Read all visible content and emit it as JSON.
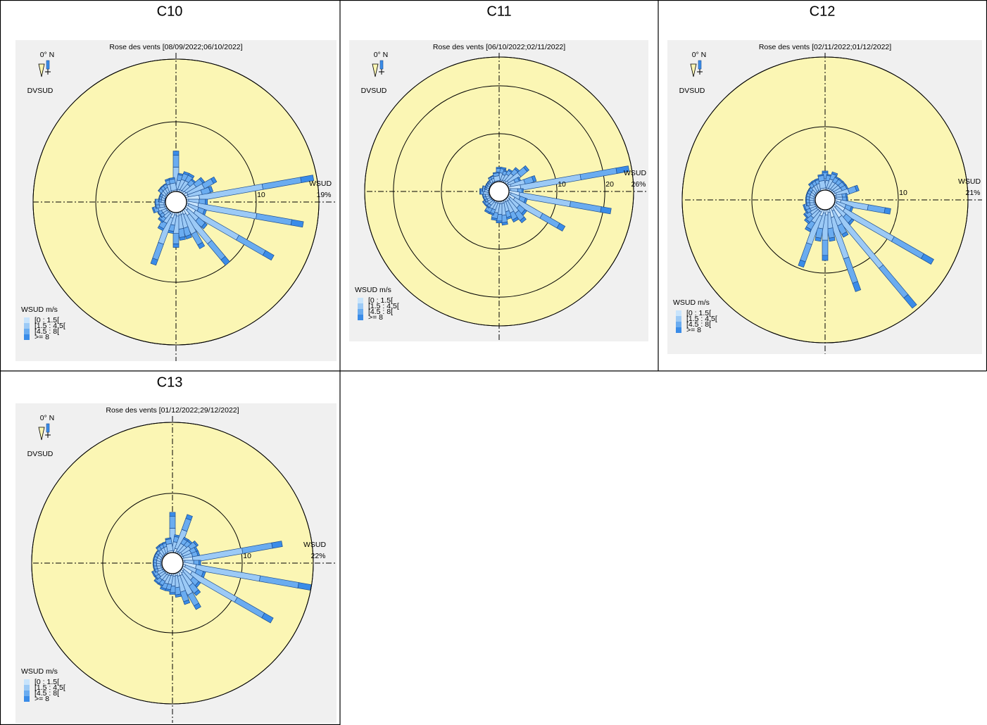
{
  "chart_data": [
    {
      "type": "windrose",
      "label": "C10",
      "title": "Rose des vents [08/09/2022;06/10/2022]",
      "north_label": "0° N",
      "direction_label": "DVSUD",
      "speed_label": "WSUD",
      "legend_title": "WSUD m/s",
      "grid": true,
      "x": [
        0,
        10,
        20,
        30,
        40,
        50,
        60,
        70,
        80,
        90,
        100,
        110,
        120,
        130,
        140,
        150,
        160,
        170,
        180,
        190,
        200,
        210,
        220,
        230,
        240,
        250,
        260,
        270,
        280,
        290,
        300,
        310,
        320,
        330,
        340,
        350
      ],
      "rlim": [
        0,
        19
      ],
      "rticks": [
        10,
        {
          "value": 19,
          "label": "19%"
        }
      ],
      "series": [
        {
          "name": "[0 : 1.5[",
          "color": "#c8e4fc",
          "values": [
            0.6,
            0.3,
            0.3,
            0.3,
            0.3,
            0.4,
            0.5,
            0.4,
            1.9,
            0.3,
            1.7,
            0.3,
            1.5,
            0.4,
            1,
            0.6,
            0.4,
            0.4,
            0.5,
            0.3,
            0.8,
            0.3,
            0.2,
            0.2,
            0.2,
            0.2,
            0.2,
            0.2,
            0.1,
            0.1,
            0.1,
            0.2,
            0.2,
            0.2,
            0.2,
            0.2
          ]
        },
        {
          "name": "[1.5 : 4.5[",
          "color": "#9ccaf6",
          "values": [
            2.9,
            1.3,
            1.5,
            1.5,
            1.2,
            1.7,
            2.5,
            2,
            9.2,
            1.5,
            8.5,
            1.5,
            7.2,
            2,
            5,
            3,
            2,
            2,
            2.5,
            1.5,
            4,
            1.5,
            1,
            0.7,
            0.7,
            1,
            0.7,
            0.7,
            0.5,
            0.5,
            0.5,
            0.7,
            0.7,
            0.7,
            1,
            1
          ]
        },
        {
          "name": "[4.5 : 8[",
          "color": "#6aacf0",
          "values": [
            1.7,
            0.8,
            0.9,
            0.9,
            0.8,
            1.1,
            1.5,
            1.2,
            5.6,
            0.9,
            5.1,
            0.9,
            4.4,
            1.2,
            3,
            1.8,
            1.2,
            1.2,
            1.5,
            0.9,
            2.4,
            0.9,
            0.6,
            0.5,
            0.5,
            0.6,
            0.5,
            0.5,
            0.3,
            0.3,
            0.3,
            0.5,
            0.5,
            0.5,
            0.6,
            0.6
          ]
        },
        {
          "name": ">= 8",
          "color": "#3a8ce8",
          "values": [
            0.6,
            0.2,
            0.3,
            0.3,
            0.2,
            0.3,
            0.5,
            0.4,
            1.8,
            0.3,
            1.7,
            0.3,
            1.4,
            0.4,
            1,
            0.6,
            0.4,
            0.4,
            0.5,
            0.3,
            0.8,
            0.3,
            0.2,
            0.1,
            0.1,
            0.2,
            0.1,
            0.1,
            0.1,
            0.1,
            0.1,
            0.1,
            0.1,
            0.1,
            0.2,
            0.2
          ]
        }
      ]
    },
    {
      "type": "windrose",
      "label": "C11",
      "title": "Rose des vents [06/10/2022;02/11/2022]",
      "north_label": "0° N",
      "direction_label": "DVSUD",
      "speed_label": "WSUD",
      "legend_title": "WSUD m/s",
      "grid": true,
      "x": [
        0,
        10,
        20,
        30,
        40,
        50,
        60,
        70,
        80,
        90,
        100,
        110,
        120,
        130,
        140,
        150,
        160,
        170,
        180,
        190,
        200,
        210,
        220,
        230,
        240,
        250,
        260,
        270,
        280,
        290,
        300,
        310,
        320,
        330,
        340,
        350
      ],
      "rlim": [
        0,
        26
      ],
      "rticks": [
        10,
        20,
        {
          "value": 26,
          "label": "26%"
        }
      ],
      "series": [
        {
          "name": "[0 : 1.5[",
          "color": "#c8e4fc",
          "values": [
            0.3,
            0.3,
            0.3,
            0.3,
            0.4,
            0.6,
            0.3,
            0.6,
            2.5,
            0.3,
            2.2,
            0.4,
            1.4,
            0.5,
            0.6,
            0.5,
            0.4,
            0.5,
            0.5,
            0.4,
            0.3,
            0.3,
            0.2,
            0.2,
            0.2,
            0.2,
            0.2,
            0.2,
            0.2,
            0.1,
            0.1,
            0.1,
            0.1,
            0.2,
            0.2,
            0.2
          ]
        },
        {
          "name": "[1.5 : 4.5[",
          "color": "#9ccaf6",
          "values": [
            1.5,
            1.5,
            1.2,
            1.5,
            2,
            2.8,
            1.5,
            3,
            12.7,
            1.5,
            10.8,
            2,
            6.7,
            2.5,
            3,
            2.5,
            2,
            2.5,
            2.2,
            2,
            1.5,
            1.5,
            1,
            1,
            0.7,
            0.7,
            0.7,
            1,
            0.7,
            0.5,
            0.5,
            0.5,
            0.5,
            0.7,
            0.7,
            1
          ]
        },
        {
          "name": "[4.5 : 8[",
          "color": "#6aacf0",
          "values": [
            0.9,
            0.9,
            0.8,
            0.9,
            1.2,
            1.7,
            0.9,
            1.8,
            7.6,
            0.9,
            6.5,
            1.2,
            4.1,
            1.5,
            1.8,
            1.5,
            1.2,
            1.5,
            1.4,
            1.2,
            0.9,
            0.9,
            0.6,
            0.6,
            0.5,
            0.5,
            0.5,
            0.6,
            0.5,
            0.3,
            0.3,
            0.3,
            0.3,
            0.5,
            0.5,
            0.6
          ]
        },
        {
          "name": ">= 8",
          "color": "#3a8ce8",
          "values": [
            0.3,
            0.3,
            0.2,
            0.3,
            0.4,
            0.5,
            0.3,
            0.6,
            2.6,
            0.3,
            2.1,
            0.4,
            1.3,
            0.5,
            0.6,
            0.5,
            0.4,
            0.5,
            0.4,
            0.4,
            0.3,
            0.3,
            0.2,
            0.2,
            0.1,
            0.1,
            0.1,
            0.2,
            0.1,
            0.1,
            0.1,
            0.1,
            0.1,
            0.1,
            0.1,
            0.2
          ]
        }
      ]
    },
    {
      "type": "windrose",
      "label": "C12",
      "title": "Rose des vents [02/11/2022;01/12/2022]",
      "north_label": "0° N",
      "direction_label": "DVSUD",
      "speed_label": "WSUD",
      "legend_title": "WSUD m/s",
      "grid": true,
      "x": [
        0,
        10,
        20,
        30,
        40,
        50,
        60,
        70,
        80,
        90,
        100,
        110,
        120,
        130,
        140,
        150,
        160,
        170,
        180,
        190,
        200,
        210,
        220,
        230,
        240,
        250,
        260,
        270,
        280,
        290,
        300,
        310,
        320,
        330,
        340,
        350
      ],
      "rlim": [
        0,
        21
      ],
      "rticks": [
        10,
        {
          "value": 21,
          "label": "21%"
        }
      ],
      "series": [
        {
          "name": "[0 : 1.5[",
          "color": "#c8e4fc",
          "values": [
            0.3,
            0.3,
            0.3,
            0.3,
            0.3,
            0.3,
            0.3,
            0.4,
            0.2,
            0.2,
            0.9,
            0.3,
            1.8,
            0.4,
            2,
            0.5,
            1.4,
            0.5,
            0.8,
            0.5,
            1,
            0.4,
            0.3,
            0.3,
            0.2,
            0.2,
            0.2,
            0.2,
            0.2,
            0.2,
            0.2,
            0.2,
            0.2,
            0.2,
            0.2,
            0.3
          ]
        },
        {
          "name": "[1.5 : 4.5[",
          "color": "#9ccaf6",
          "values": [
            1.5,
            1.2,
            1.5,
            1.2,
            1.2,
            1.2,
            1.2,
            2,
            1,
            1,
            4.4,
            1.5,
            9,
            2,
            10.2,
            2.5,
            6.8,
            2.5,
            4,
            2.5,
            4.8,
            2,
            1.5,
            1.2,
            1,
            1,
            0.7,
            0.7,
            0.7,
            0.7,
            0.7,
            0.7,
            1,
            1,
            1,
            1.2
          ]
        },
        {
          "name": "[4.5 : 8[",
          "color": "#6aacf0",
          "values": [
            0.9,
            0.8,
            0.9,
            0.8,
            0.8,
            0.8,
            0.8,
            1.2,
            0.6,
            0.6,
            2.7,
            0.9,
            5.4,
            1.2,
            6.1,
            1.5,
            4.1,
            1.5,
            2.4,
            1.5,
            2.9,
            1.2,
            0.9,
            0.8,
            0.6,
            0.6,
            0.5,
            0.5,
            0.5,
            0.5,
            0.5,
            0.5,
            0.6,
            0.6,
            0.6,
            0.8
          ]
        },
        {
          "name": ">= 8",
          "color": "#3a8ce8",
          "values": [
            0.3,
            0.2,
            0.3,
            0.2,
            0.2,
            0.2,
            0.2,
            0.4,
            0.2,
            0.2,
            0.9,
            0.3,
            1.8,
            0.4,
            2.1,
            0.5,
            1.4,
            0.5,
            0.8,
            0.5,
            0.9,
            0.4,
            0.3,
            0.2,
            0.2,
            0.2,
            0.1,
            0.1,
            0.1,
            0.1,
            0.1,
            0.1,
            0.2,
            0.2,
            0.2,
            0.2
          ]
        }
      ]
    },
    {
      "type": "windrose",
      "label": "C13",
      "title": "Rose des vents [01/12/2022;29/12/2022]",
      "north_label": "0° N",
      "direction_label": "DVSUD",
      "speed_label": "WSUD",
      "legend_title": "WSUD m/s",
      "grid": true,
      "x": [
        0,
        10,
        20,
        30,
        40,
        50,
        60,
        70,
        80,
        90,
        100,
        110,
        120,
        130,
        140,
        150,
        160,
        170,
        180,
        190,
        200,
        210,
        220,
        230,
        240,
        250,
        260,
        270,
        280,
        290,
        300,
        310,
        320,
        330,
        340,
        350
      ],
      "rlim": [
        0,
        22
      ],
      "rticks": [
        10,
        {
          "value": 22,
          "label": "22%"
        }
      ],
      "series": [
        {
          "name": "[0 : 1.5[",
          "color": "#c8e4fc",
          "values": [
            0.7,
            0.3,
            0.7,
            0.3,
            0.3,
            0.4,
            0.3,
            0.3,
            1.7,
            0.3,
            2.2,
            0.4,
            1.8,
            0.4,
            0.5,
            0.7,
            0.6,
            0.4,
            0.4,
            0.3,
            0.3,
            0.3,
            0.3,
            0.2,
            0.2,
            0.2,
            0.2,
            0.2,
            0.2,
            0.2,
            0.2,
            0.2,
            0.2,
            0.2,
            0.2,
            0.3
          ]
        },
        {
          "name": "[1.5 : 4.5[",
          "color": "#9ccaf6",
          "values": [
            3.4,
            1.5,
            3.4,
            1.5,
            1.5,
            1.7,
            1.5,
            1.5,
            8.5,
            1.5,
            11,
            2,
            8.8,
            2,
            2.5,
            3.5,
            2.7,
            2,
            1.7,
            1.5,
            1.5,
            1.2,
            1.2,
            1,
            1,
            0.7,
            0.7,
            0.7,
            0.7,
            0.7,
            0.7,
            0.7,
            1,
            1,
            1,
            1.2
          ]
        },
        {
          "name": "[4.5 : 8[",
          "color": "#6aacf0",
          "values": [
            2,
            0.9,
            2,
            0.9,
            0.9,
            1.1,
            0.9,
            0.9,
            5.1,
            0.9,
            6.6,
            1.2,
            5.3,
            1.2,
            1.5,
            2.1,
            1.7,
            1.2,
            1.1,
            0.9,
            0.9,
            0.8,
            0.8,
            0.6,
            0.6,
            0.5,
            0.5,
            0.5,
            0.5,
            0.5,
            0.5,
            0.5,
            0.6,
            0.6,
            0.6,
            0.8
          ]
        },
        {
          "name": ">= 8",
          "color": "#3a8ce8",
          "values": [
            0.7,
            0.3,
            0.7,
            0.3,
            0.3,
            0.3,
            0.3,
            0.3,
            1.7,
            0.3,
            2.1,
            0.4,
            1.7,
            0.4,
            0.5,
            0.7,
            0.5,
            0.4,
            0.3,
            0.3,
            0.3,
            0.2,
            0.2,
            0.2,
            0.2,
            0.1,
            0.1,
            0.1,
            0.1,
            0.1,
            0.1,
            0.1,
            0.2,
            0.2,
            0.2,
            0.2
          ]
        }
      ]
    }
  ]
}
